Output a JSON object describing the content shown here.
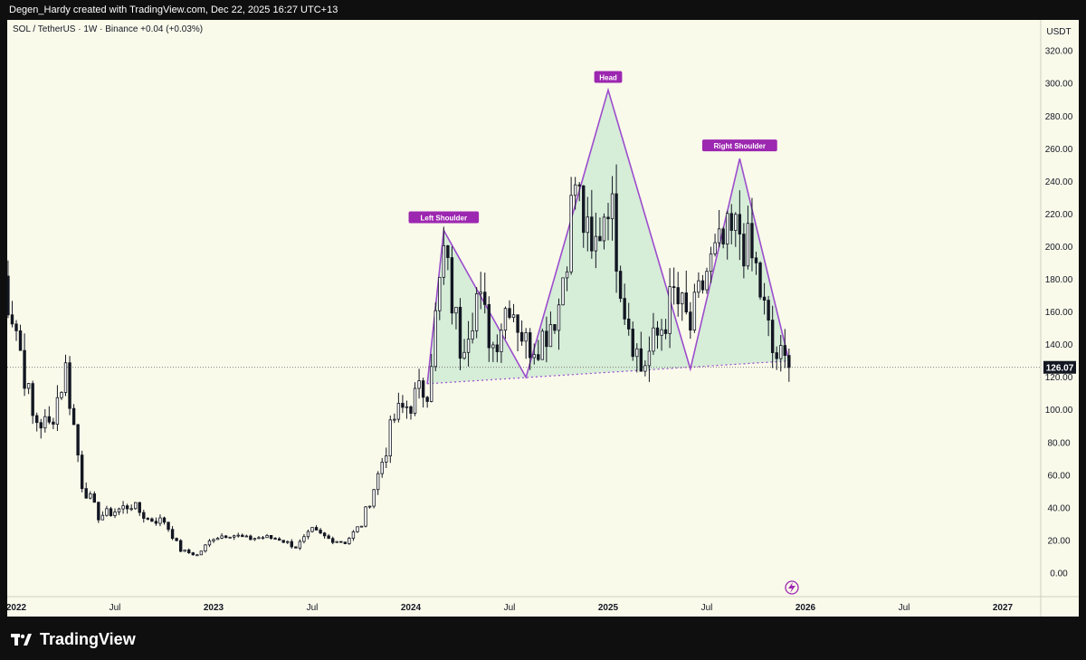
{
  "header": {
    "attribution": "Degen_Hardy created with TradingView.com, Dec 22, 2025 16:27 UTC+13"
  },
  "symbol_line": "SOL / TetherUS · 1W · Binance  +0.04 (+0.03%)",
  "brand": "TradingView",
  "colors": {
    "background": "#fafaeb",
    "candle": "#131722",
    "pattern_line": "#9c4dcc",
    "pattern_fill": "#c9e8d2",
    "label_bg": "#9c27b0"
  },
  "chart_data": {
    "type": "candlestick",
    "title": "",
    "currency_label": "USDT",
    "last_price": "126.07",
    "ylim": [
      -10,
      330
    ],
    "y_ticks": [
      "0.00",
      "20.00",
      "40.00",
      "60.00",
      "80.00",
      "100.00",
      "120.00",
      "140.00",
      "160.00",
      "180.00",
      "200.00",
      "220.00",
      "240.00",
      "260.00",
      "280.00",
      "300.00",
      "320.00"
    ],
    "x_ticks": [
      {
        "label": "2022",
        "date": "2022-01"
      },
      {
        "label": "Jul",
        "date": "2022-07"
      },
      {
        "label": "2023",
        "date": "2023-01"
      },
      {
        "label": "Jul",
        "date": "2023-07"
      },
      {
        "label": "2024",
        "date": "2024-01"
      },
      {
        "label": "Jul",
        "date": "2024-07"
      },
      {
        "label": "2025",
        "date": "2025-01"
      },
      {
        "label": "Jul",
        "date": "2025-07"
      },
      {
        "label": "2026",
        "date": "2026-01"
      },
      {
        "label": "Jul",
        "date": "2026-07"
      },
      {
        "label": "2027",
        "date": "2027-01"
      }
    ],
    "price_path": [
      {
        "date": "2021-12",
        "price": 190
      },
      {
        "date": "2022-01",
        "price": 150
      },
      {
        "date": "2022-02",
        "price": 95
      },
      {
        "date": "2022-03",
        "price": 90
      },
      {
        "date": "2022-04",
        "price": 125
      },
      {
        "date": "2022-05",
        "price": 55
      },
      {
        "date": "2022-06",
        "price": 35
      },
      {
        "date": "2022-07",
        "price": 38
      },
      {
        "date": "2022-08",
        "price": 42
      },
      {
        "date": "2022-09",
        "price": 33
      },
      {
        "date": "2022-10",
        "price": 32
      },
      {
        "date": "2022-11",
        "price": 14
      },
      {
        "date": "2022-12",
        "price": 11
      },
      {
        "date": "2023-01",
        "price": 22
      },
      {
        "date": "2023-02",
        "price": 24
      },
      {
        "date": "2023-03",
        "price": 21
      },
      {
        "date": "2023-04",
        "price": 22
      },
      {
        "date": "2023-05",
        "price": 21
      },
      {
        "date": "2023-06",
        "price": 16
      },
      {
        "date": "2023-07",
        "price": 26
      },
      {
        "date": "2023-08",
        "price": 21
      },
      {
        "date": "2023-09",
        "price": 19
      },
      {
        "date": "2023-10",
        "price": 30
      },
      {
        "date": "2023-11",
        "price": 60
      },
      {
        "date": "2023-12",
        "price": 95
      },
      {
        "date": "2024-01",
        "price": 105
      },
      {
        "date": "2024-02",
        "price": 115
      },
      {
        "date": "2024-03",
        "price": 195
      },
      {
        "date": "2024-04",
        "price": 140
      },
      {
        "date": "2024-05",
        "price": 170
      },
      {
        "date": "2024-06",
        "price": 140
      },
      {
        "date": "2024-07",
        "price": 170
      },
      {
        "date": "2024-08",
        "price": 140
      },
      {
        "date": "2024-09",
        "price": 145
      },
      {
        "date": "2024-10",
        "price": 165
      },
      {
        "date": "2024-11",
        "price": 240
      },
      {
        "date": "2024-12",
        "price": 190
      },
      {
        "date": "2025-01",
        "price": 235
      },
      {
        "date": "2025-02",
        "price": 165
      },
      {
        "date": "2025-03",
        "price": 125
      },
      {
        "date": "2025-04",
        "price": 145
      },
      {
        "date": "2025-05",
        "price": 170
      },
      {
        "date": "2025-06",
        "price": 150
      },
      {
        "date": "2025-07",
        "price": 185
      },
      {
        "date": "2025-08",
        "price": 200
      },
      {
        "date": "2025-09",
        "price": 210
      },
      {
        "date": "2025-10",
        "price": 185
      },
      {
        "date": "2025-11",
        "price": 135
      },
      {
        "date": "2025-12",
        "price": 126
      }
    ],
    "pattern": {
      "labels": [
        {
          "text": "Left Shoulder",
          "date": "2024-03",
          "price": 210
        },
        {
          "text": "Head",
          "date": "2025-01",
          "price": 296
        },
        {
          "text": "Right Shoulder",
          "date": "2025-09",
          "price": 254
        }
      ],
      "neckline": [
        {
          "date": "2024-02",
          "price": 116
        },
        {
          "date": "2025-12",
          "price": 130
        }
      ],
      "outline": [
        {
          "date": "2024-02",
          "price": 116
        },
        {
          "date": "2024-03",
          "price": 210
        },
        {
          "date": "2024-08",
          "price": 120
        },
        {
          "date": "2025-01",
          "price": 296
        },
        {
          "date": "2025-06",
          "price": 125
        },
        {
          "date": "2025-09",
          "price": 254
        },
        {
          "date": "2025-12",
          "price": 130
        }
      ]
    }
  }
}
